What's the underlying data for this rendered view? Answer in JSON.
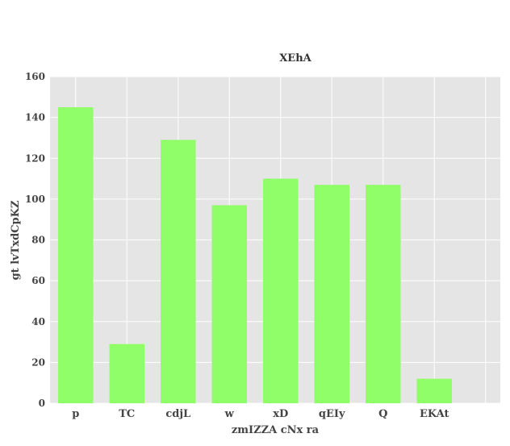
{
  "chart_data": {
    "type": "bar",
    "title": "XEhA",
    "xlabel": "zmIZZA cNx ra",
    "ylabel": "gt lvTxdCpKZ",
    "categories": [
      "p",
      "TC",
      "cdjL",
      "w",
      "xD",
      "qEIy",
      "Q",
      "EKAt"
    ],
    "values": [
      145,
      29,
      129,
      97,
      110,
      107,
      107,
      12
    ],
    "ylim": [
      0,
      160
    ],
    "yticks": [
      0,
      20,
      40,
      60,
      80,
      100,
      120,
      140,
      160
    ],
    "grid": true,
    "legend": "none"
  },
  "colors": {
    "bar": "#90fe69",
    "plot_background": "#e5e5e5",
    "grid": "#ffffff"
  }
}
